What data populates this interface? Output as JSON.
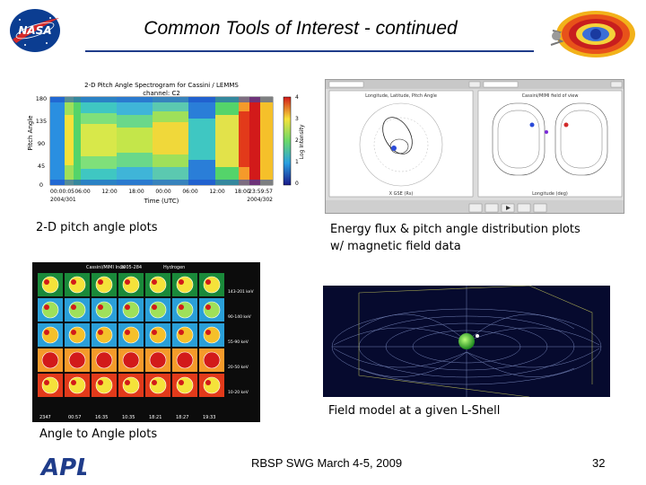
{
  "slide": {
    "title": "Common Tools of Interest - continued",
    "footer_text": "RBSP SWG March 4-5, 2009",
    "page_number": "32",
    "accent_color": "#1f3c8a"
  },
  "logos": {
    "nasa": {
      "icon": "nasa-logo-icon",
      "text": "NASA"
    },
    "apl": {
      "icon": "apl-logo-icon",
      "text": "APL"
    },
    "radiation_belts": {
      "icon": "radiation-belt-icon"
    }
  },
  "captions": {
    "pitch": "2-D pitch angle plots",
    "energy_line1": "Energy flux & pitch angle distribution plots",
    "energy_line2": "w/ magnetic field data",
    "field": "Field model at a given L-Shell",
    "angle": "Angle to Angle plots"
  },
  "spectrogram": {
    "title_line1": "2-D Pitch Angle Spectrogram for Cassini / LEMMS",
    "title_line2": "channel: C2",
    "ylabel": "Pitch Angle",
    "xlabel": "Time (UTC)",
    "colorbar_label": "Log Intensity",
    "yticks": [
      "180",
      "135",
      "90",
      "45",
      "0"
    ],
    "xticks": [
      "00:00:05",
      "06:00",
      "12:00",
      "18:00",
      "00:00",
      "06:00",
      "12:00",
      "18:00",
      "23:59:57"
    ],
    "date_start": "2004/301",
    "date_end": "2004/302",
    "colorbar_ticks": [
      "4",
      "3",
      "2",
      "1",
      "0"
    ]
  },
  "energy_window": {
    "left_panel_title": "Longitude, Latitude, Pitch Angle",
    "right_panel_title": "Cassini/MIMI field of view",
    "left_xlabel": "X GSE (Rs)",
    "right_xlabel": "Longitude (deg)"
  },
  "angle_grid": {
    "header": "Cassini/MIMI Inca",
    "species": "Hydrogen",
    "date": "2005-284",
    "energy_bands": [
      "143-201 keV",
      "90-140 keV",
      "55-90 keV",
      "20-50 keV",
      "10-20 keV"
    ],
    "times": [
      "2347",
      "00:57",
      "16:35",
      "10:35",
      "18:21",
      "18:27",
      "19:33"
    ]
  }
}
